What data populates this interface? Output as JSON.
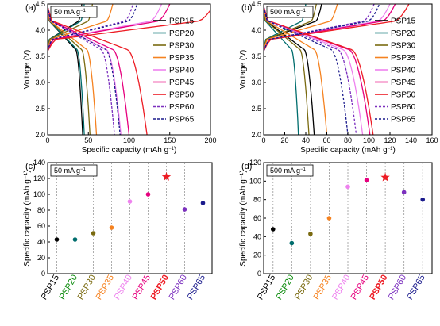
{
  "chart_data": [
    {
      "panel": "(a)",
      "type": "line",
      "condition": "50 mA g⁻¹",
      "xlabel": "Specific capacity (mAh g⁻¹)",
      "ylabel": "Voltage (V)",
      "xlim": [
        0,
        200
      ],
      "ylim": [
        2.0,
        4.5
      ],
      "xticks": [
        0,
        50,
        100,
        150,
        200
      ],
      "yticks": [
        2.0,
        2.5,
        3.0,
        3.5,
        4.0,
        4.5
      ],
      "legend_position": "right",
      "series": [
        {
          "name": "PSP15",
          "charge_capacity": 42,
          "discharge_capacity": 43,
          "dashed": false
        },
        {
          "name": "PSP20",
          "charge_capacity": 45,
          "discharge_capacity": 45,
          "dashed": false
        },
        {
          "name": "PSP30",
          "charge_capacity": 55,
          "discharge_capacity": 52,
          "dashed": false
        },
        {
          "name": "PSP35",
          "charge_capacity": 80,
          "discharge_capacity": 60,
          "dashed": false
        },
        {
          "name": "PSP40",
          "charge_capacity": 140,
          "discharge_capacity": 90,
          "dashed": false
        },
        {
          "name": "PSP45",
          "charge_capacity": 150,
          "discharge_capacity": 100,
          "dashed": false
        },
        {
          "name": "PSP50",
          "charge_capacity": 205,
          "discharge_capacity": 122,
          "dashed": false
        },
        {
          "name": "PSP60",
          "charge_capacity": 105,
          "discharge_capacity": 82,
          "dashed": true
        },
        {
          "name": "PSP65",
          "charge_capacity": 110,
          "discharge_capacity": 89,
          "dashed": true
        }
      ]
    },
    {
      "panel": "(b)",
      "type": "line",
      "condition": "500 mA g⁻¹",
      "xlabel": "Specific capacity (mAh g⁻¹)",
      "ylabel": "Voltage (V)",
      "xlim": [
        0,
        160
      ],
      "ylim": [
        2.0,
        4.5
      ],
      "xticks": [
        0,
        20,
        40,
        60,
        80,
        100,
        120,
        140,
        160
      ],
      "yticks": [
        2.0,
        2.5,
        3.0,
        3.5,
        4.0,
        4.5
      ],
      "legend_position": "right",
      "series": [
        {
          "name": "PSP15",
          "charge_capacity": 55,
          "discharge_capacity": 48,
          "dashed": false
        },
        {
          "name": "PSP20",
          "charge_capacity": 40,
          "discharge_capacity": 33,
          "dashed": false
        },
        {
          "name": "PSP30",
          "charge_capacity": 50,
          "discharge_capacity": 43,
          "dashed": false
        },
        {
          "name": "PSP35",
          "charge_capacity": 70,
          "discharge_capacity": 60,
          "dashed": false
        },
        {
          "name": "PSP40",
          "charge_capacity": 120,
          "discharge_capacity": 94,
          "dashed": false
        },
        {
          "name": "PSP45",
          "charge_capacity": 125,
          "discharge_capacity": 101,
          "dashed": false
        },
        {
          "name": "PSP50",
          "charge_capacity": 138,
          "discharge_capacity": 104,
          "dashed": false
        },
        {
          "name": "PSP60",
          "charge_capacity": 105,
          "discharge_capacity": 88,
          "dashed": true
        },
        {
          "name": "PSP65",
          "charge_capacity": 110,
          "discharge_capacity": 80,
          "dashed": true
        }
      ]
    },
    {
      "panel": "(c)",
      "type": "scatter",
      "condition": "50 mA g⁻¹",
      "ylabel": "Specific capacity (mAh g⁻¹)",
      "ylim": [
        0,
        140
      ],
      "yticks": [
        0,
        20,
        40,
        60,
        80,
        100,
        120,
        140
      ],
      "categories": [
        "PSP15",
        "PSP20",
        "PSP30",
        "PSP35",
        "PSP40",
        "PSP45",
        "PSP50",
        "PSP60",
        "PSP65"
      ],
      "values": [
        43,
        43,
        51,
        58,
        91,
        100,
        122,
        81,
        89
      ],
      "highlight": "PSP50"
    },
    {
      "panel": "(d)",
      "type": "scatter",
      "condition": "500 mA g⁻¹",
      "ylabel": "Specific capacity (mAh g⁻¹)",
      "ylim": [
        0,
        120
      ],
      "yticks": [
        0,
        20,
        40,
        60,
        80,
        100,
        120
      ],
      "categories": [
        "PSP15",
        "PSP20",
        "PSP30",
        "PSP35",
        "PSP40",
        "PSP45",
        "PSP50",
        "PSP60",
        "PSP65"
      ],
      "values": [
        48,
        33,
        43,
        60,
        94,
        101,
        104,
        88,
        80
      ],
      "highlight": "PSP50"
    }
  ],
  "colors": {
    "PSP15": "#000000",
    "PSP20": "#006d6d",
    "PSP30": "#7a6a10",
    "PSP35": "#f58220",
    "PSP40": "#ee82ee",
    "PSP45": "#e6007e",
    "PSP50": "#ed1c24",
    "PSP60": "#7b2fbe",
    "PSP65": "#1a1a8c"
  },
  "label_colors": {
    "PSP15": "#000000",
    "PSP20": "#0a8a0a",
    "PSP30": "#7a6a10",
    "PSP35": "#f58220",
    "PSP40": "#ee82ee",
    "PSP45": "#e6007e",
    "PSP50": "#ed1c24",
    "PSP60": "#7b2fbe",
    "PSP65": "#1a1a8c"
  }
}
